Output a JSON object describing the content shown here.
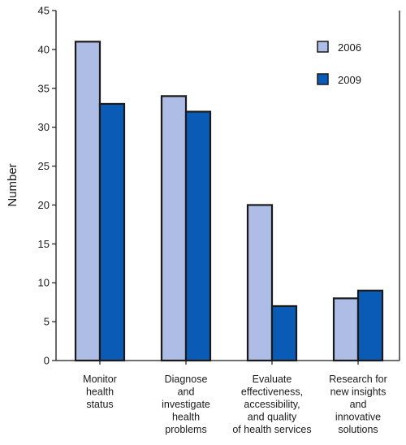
{
  "chart_data": {
    "type": "bar",
    "categories": [
      [
        "Monitor",
        "health",
        "status"
      ],
      [
        "Diagnose",
        "and",
        "investigate",
        "health",
        "problems"
      ],
      [
        "Evaluate",
        "effectiveness,",
        "accessibility,",
        "and quality",
        "of health services"
      ],
      [
        "Research for",
        "new insights",
        "and",
        "innovative",
        "solutions"
      ]
    ],
    "series": [
      {
        "name": "2006",
        "values": [
          41,
          34,
          20,
          8
        ],
        "color": "#aebde6"
      },
      {
        "name": "2009",
        "values": [
          33,
          32,
          7,
          9
        ],
        "color": "#0a5bb5"
      }
    ],
    "title": "",
    "xlabel": "",
    "ylabel": "Number",
    "ylim": [
      0,
      45
    ],
    "yticks": [
      0,
      5,
      10,
      15,
      20,
      25,
      30,
      35,
      40,
      45
    ],
    "grid": false,
    "legend_position": "top-right"
  }
}
